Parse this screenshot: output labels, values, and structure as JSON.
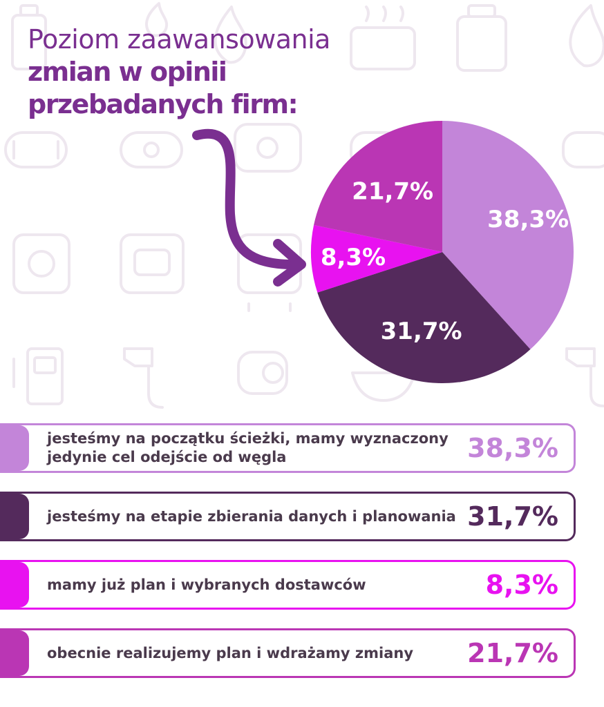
{
  "title": {
    "line1": "Poziom zaawansowania",
    "line2": "zmian w opinii",
    "line3": "przebadanych firm:"
  },
  "chart_data": {
    "type": "pie",
    "title": "Poziom zaawansowania zmian w opinii przebadanych firm:",
    "slices": [
      {
        "label": "jesteśmy na początku ścieżki, mamy wyznaczony jedynie cel odejście od węgla",
        "value": 38.3,
        "display": "38,3%",
        "color": "#c385d9"
      },
      {
        "label": "jesteśmy na etapie zbierania danych i planowania",
        "value": 31.7,
        "display": "31,7%",
        "color": "#542a5c"
      },
      {
        "label": "mamy już plan i wybranych dostawców",
        "value": 8.3,
        "display": "8,3%",
        "color": "#e812f0"
      },
      {
        "label": "obecnie realizujemy plan i wdrażamy zmiany",
        "value": 21.7,
        "display": "21,7%",
        "color": "#ba36b4"
      }
    ]
  },
  "legend": {
    "value_colors": [
      "#c385d9",
      "#542a5c",
      "#e812f0",
      "#ba36b4"
    ]
  },
  "background_icons": [
    "gas-cylinder-icon",
    "flame-icon",
    "boiler-icon",
    "tank-icon",
    "heater-icon",
    "meter-icon",
    "fuel-pump-icon",
    "nozzle-icon",
    "pipe-icon"
  ]
}
